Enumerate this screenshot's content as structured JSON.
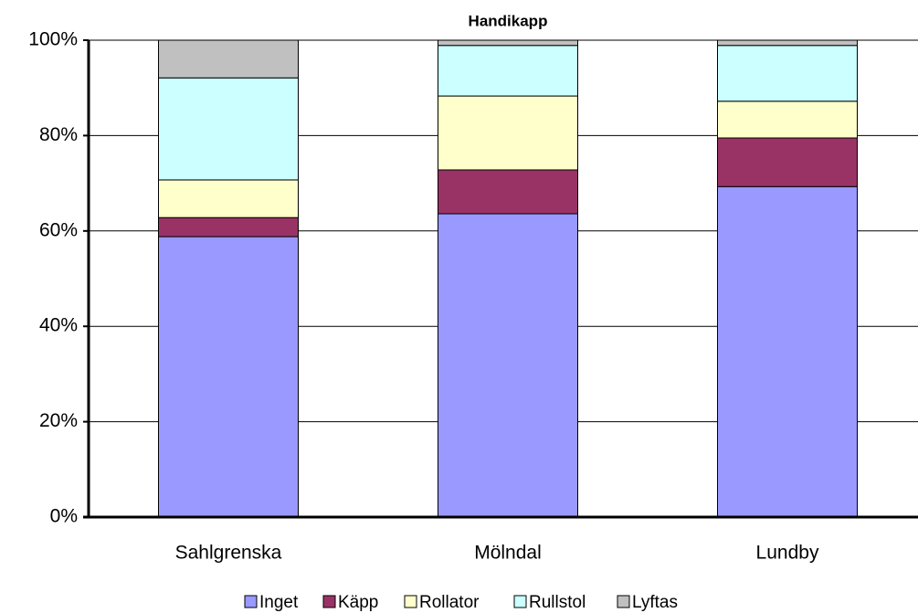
{
  "chart_data": {
    "type": "stacked_bar",
    "title": "Handikapp",
    "categories": [
      "Sahlgrenska",
      "Mölndal",
      "Lundby"
    ],
    "series": [
      {
        "name": "Inget",
        "color": "#9999ff",
        "values": [
          58.8,
          63.6,
          69.3
        ]
      },
      {
        "name": "Käpp",
        "color": "#993366",
        "values": [
          4.0,
          9.2,
          10.2
        ]
      },
      {
        "name": "Rollator",
        "color": "#ffffcc",
        "values": [
          7.9,
          15.5,
          7.7
        ]
      },
      {
        "name": "Rullstol",
        "color": "#ccffff",
        "values": [
          21.4,
          10.6,
          11.7
        ]
      },
      {
        "name": "Lyftas",
        "color": "#c0c0c0",
        "values": [
          7.9,
          1.1,
          1.1
        ]
      }
    ],
    "ylim": [
      0,
      100
    ],
    "yticks": [
      {
        "value": 0,
        "label": "0%"
      },
      {
        "value": 20,
        "label": "20%"
      },
      {
        "value": 40,
        "label": "40%"
      },
      {
        "value": 60,
        "label": "60%"
      },
      {
        "value": 80,
        "label": "80%"
      },
      {
        "value": 100,
        "label": "100%"
      }
    ],
    "grid": true,
    "legend": "bottom"
  }
}
